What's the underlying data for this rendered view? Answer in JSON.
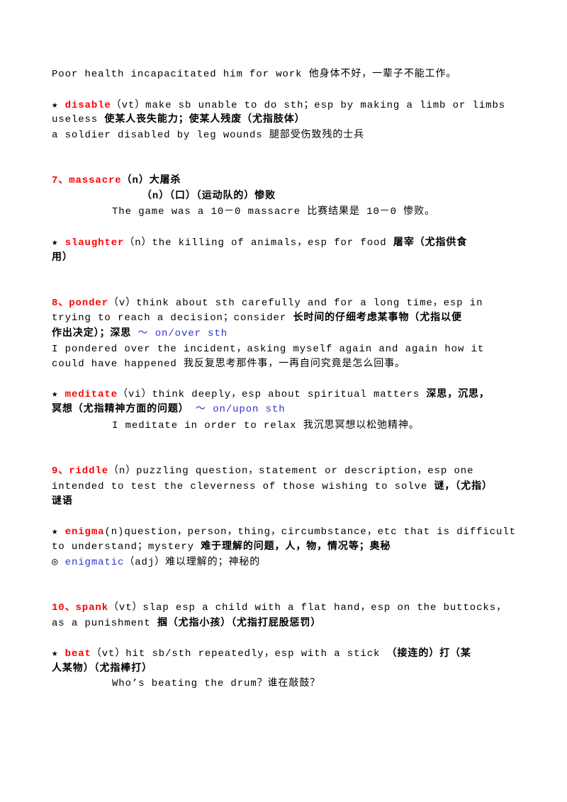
{
  "lines": [
    [
      "Poor health incapacitated him for work 他身体不好，一辈子不能工作。"
    ],
    [
      "★ ",
      "disable",
      "（vt）make sb unable to do sth；esp by making a limb or limbs"
    ],
    [
      "useless ",
      "使某人丧失能力；使某人残废（尤指肢体）"
    ],
    [
      "a soldier disabled by leg wounds 腿部受伤致残的士兵"
    ],
    [
      "7、massacre",
      "（n）大屠杀"
    ],
    [
      "（n）（口）（运动队的）惨败"
    ],
    [
      "The game was a 10－0 massacre 比赛结果是 10－0 惨败。"
    ],
    [
      "★ ",
      "slaughter",
      "（n）the killing of animals，esp for food ",
      "屠宰（尤指供食"
    ],
    [
      "用）"
    ],
    [
      "8、ponder",
      "（v）think about sth carefully and for a long time，esp in"
    ],
    [
      "trying to reach a decision；consider ",
      "长时间的仔细考虑某事物（尤指以便"
    ],
    [
      "作出决定）；深思 ",
      "～ on/over sth"
    ],
    [
      "I pondered over the incident，asking myself again and again how it"
    ],
    [
      "could have happened 我反复思考那件事，一再自问究竟是怎么回事。"
    ],
    [
      "★ ",
      "meditate",
      "（vi）think deeply，esp about spiritual matters ",
      "深思，沉思，"
    ],
    [
      "冥想（尤指精神方面的问题） ",
      "～ on/upon sth"
    ],
    [
      "I meditate in order to relax 我沉思冥想以松弛精神。"
    ],
    [
      "9、riddle",
      "（n）puzzling question，statement or description，esp one"
    ],
    [
      "intended to test the cleverness of those wishing to solve ",
      "谜，（尤指）"
    ],
    [
      "谜语"
    ],
    [
      "★ ",
      "enigma",
      "(n)question，person，thing，circumbstance，etc that is difficult"
    ],
    [
      "to understand；mystery ",
      "难于理解的问题，人，物，情况等；奥秘"
    ],
    [
      "◎ ",
      "enigmatic",
      "（adj）难以理解的；神秘的"
    ],
    [
      "10、spank",
      "（vt）slap esp a child with a flat hand，esp on the buttocks，"
    ],
    [
      "as a punishment ",
      "掴（尤指小孩）（尤指打屁股惩罚）"
    ],
    [
      "★ ",
      "beat",
      "（vt）hit sb/sth repeatedly，esp with a stick ",
      "（接连的）打（某"
    ],
    [
      "人某物）（尤指棒打）"
    ],
    [
      "Who’s beating the drum？谁在敲鼓？"
    ]
  ]
}
